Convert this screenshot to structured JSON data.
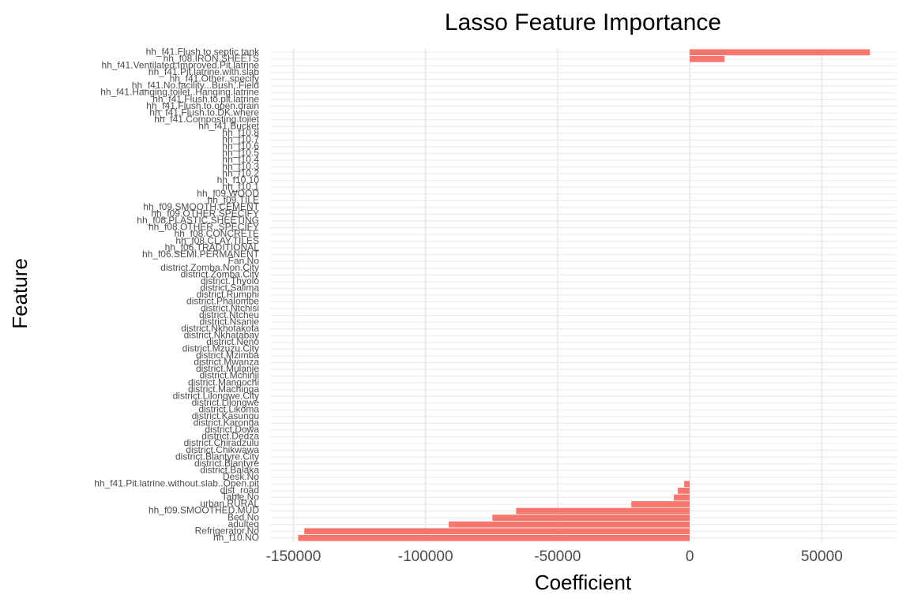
{
  "chart_data": {
    "type": "barh",
    "title": "Lasso Feature Importance",
    "xlabel": "Coefficient",
    "ylabel": "Feature",
    "categories": [
      "hh_f41.Flush to septic tank",
      "hh_f08.IRON.SHEETS",
      "hh_f41.Ventilated.Improved.Pit.latrine",
      "hh_f41.Pit.latrine.with.slab",
      "hh_f41.Other..specify",
      "hh_f41.No.facility...Bush..Field",
      "hh_f41.Hanging.toilet..Hanging.latrine",
      "hh_f41.Flush.to.pit.latrine",
      "hh_f41.Flush.to.open.drain",
      "hh_f41.Flush.to.DK.where",
      "hh_f41.Composting.toilet",
      "hh_f41.Bucket",
      "hh_f10.8",
      "hh_f10.7",
      "hh_f10.6",
      "hh_f10.5",
      "hh_f10.4",
      "hh_f10.3",
      "hh_f10.2",
      "hh_f10.10",
      "hh_f10.1",
      "hh_f09.WOOD",
      "hh_f09.TILE",
      "hh_f09.SMOOTH.CEMENT",
      "hh_f09.OTHER.SPECIFY",
      "hh_f08.PLASTIC.SHEETING",
      "hh_f08.OTHER..SPECIFY",
      "hh_f08.CONCRETE",
      "hh_f08.CLAY.TILES",
      "hh_f06.TRADITIONAL",
      "hh_f06.SEMI.PERMANENT",
      "Fan.No",
      "district.Zomba.Non.City",
      "district.Zomba.City",
      "district.Thyolo",
      "district.Salima",
      "district.Rumphi",
      "district.Phalombe",
      "district.Ntchisi",
      "district.Ntcheu",
      "district.Nsanje",
      "district.Nkhotakota",
      "district.Nkhatabay",
      "district.Neno",
      "district.Mzuzu.City",
      "district.Mzimba",
      "district.Mwanza",
      "district.Mulanje",
      "district.Mchinji",
      "district.Mangochi",
      "district.Machinga",
      "district.Lilongwe.City",
      "district.Lilongwe",
      "district.Likoma",
      "district.Kasungu",
      "district.Karonga",
      "district.Dowa",
      "district.Dedza",
      "district.Chiradzulu",
      "district.Chikwawa",
      "district.Blantyre.City",
      "district.Blantyre",
      "district.Balaka",
      "Desk.No",
      "hh_f41.Pit.latrine.without.slab..Open.pit",
      "dist_road",
      "Table.No",
      "urban.RURAL",
      "hh_f09.SMOOTHED.MUD",
      "Bed.No",
      "adulteq",
      "Refrigerator.No",
      "hh_f10.NO"
    ],
    "values": [
      68200,
      13200,
      0,
      0,
      0,
      0,
      0,
      0,
      0,
      0,
      0,
      0,
      0,
      0,
      0,
      0,
      0,
      0,
      0,
      0,
      0,
      0,
      0,
      0,
      0,
      0,
      0,
      0,
      0,
      0,
      0,
      0,
      0,
      0,
      0,
      0,
      0,
      0,
      0,
      0,
      0,
      0,
      0,
      0,
      0,
      0,
      0,
      0,
      0,
      0,
      0,
      0,
      0,
      0,
      0,
      0,
      0,
      0,
      0,
      0,
      0,
      0,
      0,
      0,
      -2100,
      -4500,
      -6000,
      -22100,
      -65700,
      -74700,
      -91200,
      -145900,
      -148200
    ],
    "color": "#F8766D",
    "xlim": [
      -158800,
      78300
    ],
    "xticks": [
      -150000,
      -100000,
      -50000,
      0,
      50000
    ],
    "grid": true
  }
}
